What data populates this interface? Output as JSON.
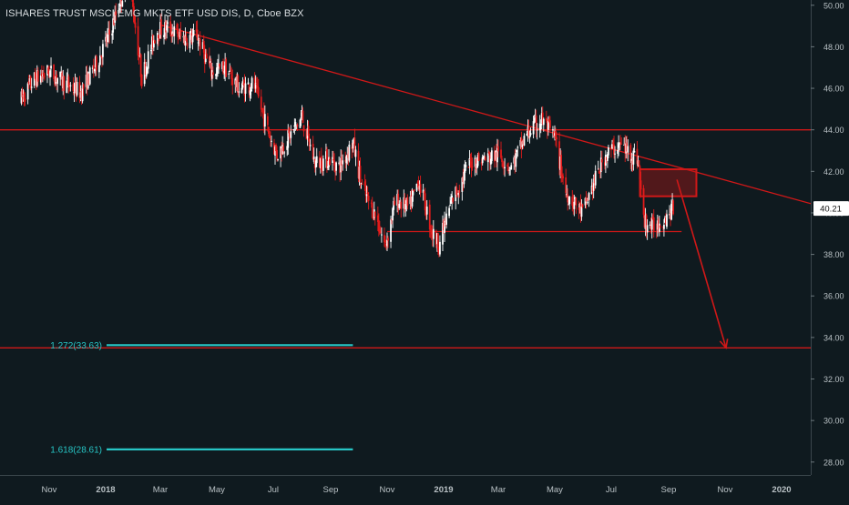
{
  "title": "ISHARES TRUST MSCI EMG MKTS ETF USD DIS, D, Cboe BZX",
  "colors": {
    "background": "#0f1a1f",
    "up_candle": "#ffffff",
    "down_candle": "#e01b1b",
    "trendline": "#d01818",
    "fib_line": "#27c6c6",
    "axis_text": "#b8c0c4",
    "price_tag_bg": "#ffffff",
    "price_tag_text": "#111111"
  },
  "chart_data": {
    "type": "candlestick",
    "ylim": [
      27.3,
      50.1
    ],
    "y_ticks": [
      "28.00",
      "30.00",
      "32.00",
      "34.00",
      "36.00",
      "38.00",
      "40.00",
      "42.00",
      "44.00",
      "46.00",
      "48.00",
      "50.00"
    ],
    "x_tick_labels": [
      "Nov",
      "2018",
      "Mar",
      "May",
      "Jul",
      "Sep",
      "Nov",
      "2019",
      "Mar",
      "May",
      "Jul",
      "Sep",
      "Nov",
      "2020"
    ],
    "bold_x_ticks": [
      "2018",
      "2019",
      "2020"
    ],
    "last_price": "40.21",
    "price_path": [
      [
        "2017-10-01",
        45.4
      ],
      [
        "2017-10-15",
        46.4
      ],
      [
        "2017-11-01",
        46.8
      ],
      [
        "2017-11-20",
        46.2
      ],
      [
        "2017-12-05",
        45.8
      ],
      [
        "2017-12-20",
        47.0
      ],
      [
        "2018-01-05",
        48.6
      ],
      [
        "2018-01-26",
        51.5
      ],
      [
        "2018-02-09",
        46.5
      ],
      [
        "2018-02-25",
        48.8
      ],
      [
        "2018-03-10",
        48.9
      ],
      [
        "2018-03-25",
        48.4
      ],
      [
        "2018-04-10",
        48.5
      ],
      [
        "2018-04-25",
        46.8
      ],
      [
        "2018-05-10",
        47.0
      ],
      [
        "2018-05-25",
        46.0
      ],
      [
        "2018-06-10",
        46.2
      ],
      [
        "2018-06-25",
        44.0
      ],
      [
        "2018-07-05",
        42.8
      ],
      [
        "2018-07-20",
        43.8
      ],
      [
        "2018-08-01",
        44.6
      ],
      [
        "2018-08-15",
        42.4
      ],
      [
        "2018-08-31",
        42.6
      ],
      [
        "2018-09-10",
        42.2
      ],
      [
        "2018-09-25",
        43.4
      ],
      [
        "2018-10-05",
        41.2
      ],
      [
        "2018-10-20",
        39.8
      ],
      [
        "2018-10-30",
        38.4
      ],
      [
        "2018-11-10",
        40.6
      ],
      [
        "2018-11-25",
        40.2
      ],
      [
        "2018-12-05",
        41.6
      ],
      [
        "2018-12-20",
        39.0
      ],
      [
        "2018-12-27",
        38.5
      ],
      [
        "2019-01-10",
        40.6
      ],
      [
        "2019-01-31",
        42.5
      ],
      [
        "2019-02-15",
        42.6
      ],
      [
        "2019-03-01",
        42.8
      ],
      [
        "2019-03-15",
        42.2
      ],
      [
        "2019-04-01",
        43.8
      ],
      [
        "2019-04-17",
        44.5
      ],
      [
        "2019-05-01",
        43.6
      ],
      [
        "2019-05-13",
        41.0
      ],
      [
        "2019-05-31",
        40.0
      ],
      [
        "2019-06-10",
        41.2
      ],
      [
        "2019-06-25",
        42.8
      ],
      [
        "2019-07-10",
        43.3
      ],
      [
        "2019-07-30",
        42.6
      ],
      [
        "2019-08-05",
        39.6
      ],
      [
        "2019-08-15",
        39.3
      ],
      [
        "2019-08-31",
        39.9
      ],
      [
        "2019-09-06",
        40.2
      ]
    ],
    "horizontal_lines": [
      {
        "label": "resistance",
        "price": 44.0
      },
      {
        "label": "target",
        "price": 33.5
      }
    ],
    "support_line": {
      "price": 39.1,
      "from": "2018-11-01",
      "to": "2019-09-15"
    },
    "trendline": {
      "from": [
        "2018-03-01",
        49.05
      ],
      "to": [
        "2020-03-09",
        40.0
      ]
    },
    "resistance_zone": {
      "from": "2019-08-01",
      "to": "2019-10-01",
      "top": 42.1,
      "bottom": 40.8
    },
    "projection_arrow": {
      "from": [
        "2019-09-10",
        41.6
      ],
      "to": [
        "2019-11-02",
        33.5
      ]
    },
    "fib_levels": [
      {
        "label": "1.272(33.63)",
        "price": 33.63
      },
      {
        "label": "1.618(28.61)",
        "price": 28.61
      }
    ],
    "fib_line_end": "2018-09-25"
  }
}
